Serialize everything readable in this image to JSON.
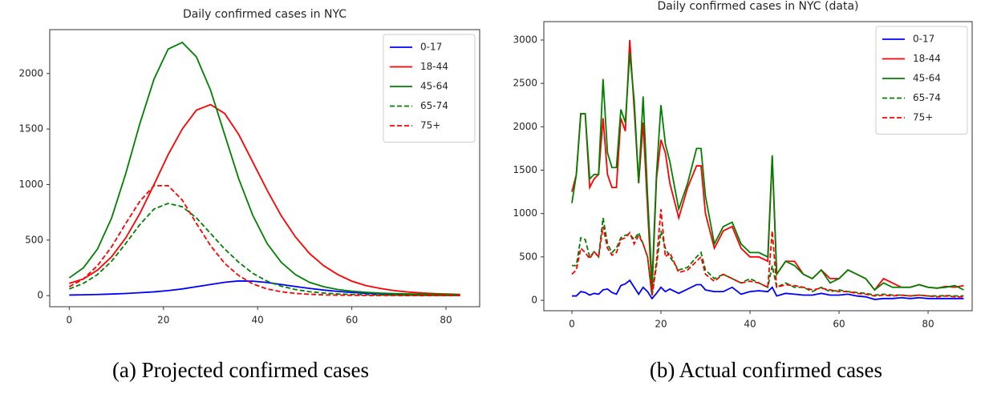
{
  "chart_data": [
    {
      "type": "line",
      "title": "Daily confirmed cases in NYC",
      "caption": "(a) Projected confirmed cases",
      "x": [
        0,
        3,
        6,
        9,
        12,
        15,
        18,
        21,
        24,
        27,
        30,
        33,
        36,
        39,
        42,
        45,
        48,
        51,
        54,
        57,
        60,
        63,
        66,
        69,
        72,
        75,
        78,
        81,
        83
      ],
      "series": [
        {
          "name": "0-17",
          "color": "#0000ff",
          "linestyle": "solid",
          "values": [
            5,
            7,
            10,
            14,
            19,
            26,
            34,
            45,
            60,
            80,
            100,
            120,
            132,
            130,
            118,
            100,
            82,
            65,
            50,
            38,
            28,
            21,
            16,
            12,
            9,
            7,
            5,
            4,
            3
          ]
        },
        {
          "name": "18-44",
          "color": "#ff0000",
          "linestyle": "solid",
          "values": [
            110,
            150,
            230,
            350,
            520,
            740,
            1000,
            1270,
            1500,
            1670,
            1720,
            1640,
            1450,
            1200,
            950,
            720,
            530,
            380,
            270,
            190,
            130,
            90,
            65,
            45,
            32,
            23,
            17,
            13,
            11
          ]
        },
        {
          "name": "45-64",
          "color": "#008000",
          "linestyle": "solid",
          "values": [
            160,
            250,
            420,
            700,
            1100,
            1550,
            1950,
            2220,
            2280,
            2150,
            1850,
            1450,
            1050,
            720,
            470,
            300,
            190,
            120,
            80,
            55,
            40,
            30,
            22,
            18,
            15,
            12,
            10,
            9,
            8
          ]
        },
        {
          "name": "65-74",
          "color": "#008000",
          "linestyle": "dashed",
          "values": [
            60,
            110,
            190,
            310,
            470,
            640,
            780,
            830,
            800,
            700,
            560,
            420,
            300,
            200,
            130,
            85,
            55,
            35,
            23,
            15,
            10,
            7,
            5,
            4,
            3,
            2,
            2,
            1,
            1
          ]
        },
        {
          "name": "75+",
          "color": "#ff0000",
          "linestyle": "dashed",
          "values": [
            80,
            150,
            270,
            440,
            650,
            850,
            990,
            990,
            860,
            650,
            450,
            290,
            180,
            105,
            60,
            35,
            20,
            12,
            7,
            4,
            3,
            2,
            1,
            1,
            0,
            0,
            0,
            0,
            0
          ]
        }
      ],
      "xlim": [
        -4.15,
        87.15
      ],
      "ylim": [
        -100,
        2395
      ],
      "xticks": [
        0,
        20,
        40,
        60,
        80
      ],
      "yticks": [
        0,
        500,
        1000,
        1500,
        2000
      ],
      "legend": "upper right"
    },
    {
      "type": "line",
      "title": "Daily confirmed cases in NYC (data)",
      "caption": "(b) Actual confirmed cases",
      "x": [
        0,
        1,
        2,
        3,
        4,
        5,
        6,
        7,
        8,
        9,
        10,
        11,
        12,
        13,
        14,
        15,
        16,
        17,
        18,
        19,
        20,
        21,
        22,
        24,
        26,
        28,
        29,
        30,
        32,
        34,
        36,
        38,
        40,
        42,
        44,
        45,
        46,
        48,
        50,
        52,
        54,
        56,
        58,
        60,
        62,
        64,
        66,
        68,
        70,
        72,
        74,
        76,
        78,
        80,
        82,
        84,
        86,
        88
      ],
      "series": [
        {
          "name": "0-17",
          "color": "#0000ff",
          "linestyle": "solid",
          "values": [
            50,
            50,
            100,
            90,
            60,
            80,
            70,
            120,
            130,
            90,
            70,
            170,
            190,
            230,
            150,
            70,
            150,
            100,
            20,
            80,
            150,
            100,
            130,
            80,
            130,
            180,
            180,
            120,
            100,
            100,
            150,
            70,
            100,
            110,
            100,
            150,
            50,
            80,
            70,
            60,
            60,
            80,
            60,
            60,
            70,
            50,
            40,
            10,
            20,
            20,
            30,
            20,
            30,
            20,
            20,
            20,
            20,
            20
          ]
        },
        {
          "name": "18-44",
          "color": "#ff0000",
          "linestyle": "solid",
          "values": [
            1250,
            1450,
            2150,
            2150,
            1300,
            1400,
            1450,
            2100,
            1450,
            1300,
            1300,
            2100,
            1950,
            3000,
            2200,
            1350,
            2050,
            1050,
            100,
            1400,
            1850,
            1700,
            1350,
            950,
            1300,
            1550,
            1550,
            1000,
            600,
            800,
            850,
            600,
            500,
            500,
            450,
            1650,
            300,
            450,
            450,
            300,
            250,
            350,
            250,
            250,
            350,
            300,
            250,
            120,
            250,
            200,
            150,
            150,
            180,
            150,
            140,
            160,
            150,
            170
          ]
        },
        {
          "name": "45-64",
          "color": "#008000",
          "linestyle": "solid",
          "values": [
            1120,
            1450,
            2150,
            2150,
            1400,
            1450,
            1450,
            2550,
            1700,
            1530,
            1530,
            2200,
            2050,
            2850,
            2300,
            1350,
            2350,
            1200,
            200,
            1450,
            2250,
            1800,
            1600,
            1050,
            1350,
            1750,
            1750,
            1200,
            650,
            850,
            900,
            650,
            550,
            550,
            500,
            1670,
            300,
            450,
            400,
            300,
            250,
            350,
            200,
            250,
            350,
            300,
            250,
            120,
            200,
            150,
            150,
            150,
            180,
            150,
            140,
            150,
            170,
            120
          ]
        },
        {
          "name": "65-74",
          "color": "#008000",
          "linestyle": "dashed",
          "values": [
            400,
            400,
            720,
            700,
            500,
            560,
            500,
            950,
            650,
            550,
            600,
            720,
            750,
            760,
            700,
            780,
            650,
            500,
            50,
            400,
            800,
            600,
            500,
            350,
            380,
            500,
            550,
            350,
            250,
            300,
            250,
            200,
            250,
            200,
            150,
            400,
            150,
            200,
            150,
            150,
            100,
            150,
            100,
            120,
            100,
            90,
            80,
            60,
            70,
            60,
            60,
            50,
            60,
            50,
            50,
            55,
            50,
            50
          ]
        },
        {
          "name": "75+",
          "color": "#ff0000",
          "linestyle": "dashed",
          "values": [
            300,
            350,
            600,
            550,
            480,
            560,
            500,
            850,
            600,
            520,
            550,
            700,
            720,
            780,
            650,
            750,
            650,
            500,
            60,
            450,
            1050,
            500,
            550,
            320,
            350,
            450,
            500,
            300,
            220,
            300,
            250,
            200,
            220,
            200,
            150,
            800,
            150,
            180,
            170,
            150,
            120,
            140,
            120,
            100,
            100,
            80,
            70,
            50,
            60,
            50,
            60,
            50,
            60,
            50,
            40,
            50,
            40,
            40
          ]
        }
      ],
      "xlim": [
        -6.3,
        89.9
      ],
      "ylim": [
        -120,
        3212
      ],
      "xticks": [
        0,
        20,
        40,
        60,
        80
      ],
      "yticks": [
        0,
        500,
        1000,
        1500,
        2000,
        2500,
        3000
      ],
      "legend": "upper right"
    }
  ]
}
